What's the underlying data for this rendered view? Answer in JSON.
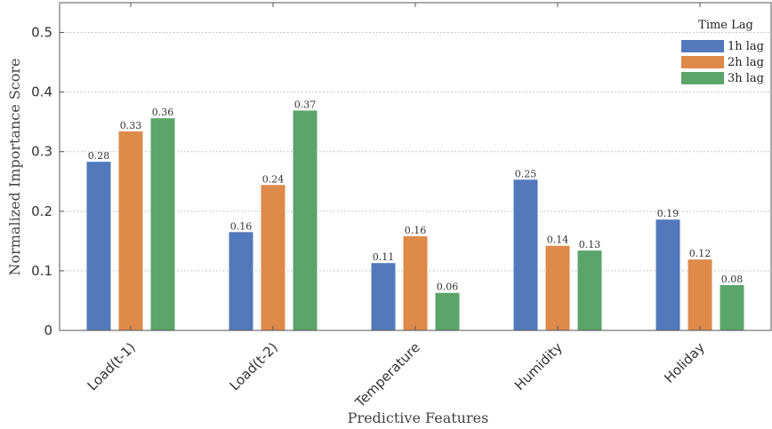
{
  "chart_data": {
    "type": "bar",
    "title": "",
    "xlabel": "Predictive Features",
    "ylabel": "Normalized Importance Score",
    "categories": [
      "Load(t-1)",
      "Load(t-2)",
      "Temperature",
      "Humidity",
      "Holiday"
    ],
    "series": [
      {
        "name": "1h lag",
        "color": "#5279bb",
        "values": [
          0.283,
          0.165,
          0.113,
          0.253,
          0.186
        ],
        "labels": [
          "0.28",
          "0.16",
          "0.11",
          "0.25",
          "0.19"
        ]
      },
      {
        "name": "2h lag",
        "color": "#dd8a4a",
        "values": [
          0.334,
          0.244,
          0.158,
          0.142,
          0.119
        ],
        "labels": [
          "0.33",
          "0.24",
          "0.16",
          "0.14",
          "0.12"
        ]
      },
      {
        "name": "3h lag",
        "color": "#5ba46a",
        "values": [
          0.356,
          0.369,
          0.063,
          0.134,
          0.076
        ],
        "labels": [
          "0.36",
          "0.37",
          "0.06",
          "0.13",
          "0.08"
        ]
      }
    ],
    "ylim": [
      0,
      0.55
    ],
    "yticks": [
      0,
      0.1,
      0.2,
      0.3,
      0.4,
      0.5
    ],
    "ytick_labels": [
      "0",
      "0.1",
      "0.2",
      "0.3",
      "0.4",
      "0.5"
    ],
    "legend": {
      "title": "Time Lag",
      "placement": "top-right"
    },
    "grid": "y dotted"
  }
}
